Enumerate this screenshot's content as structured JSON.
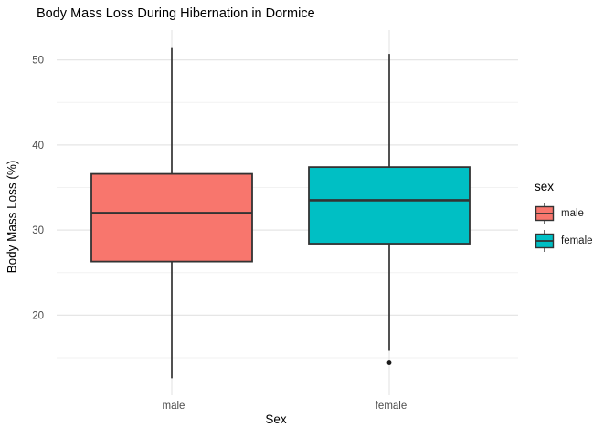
{
  "chart_data": {
    "type": "boxplot",
    "title": "Body Mass Loss During Hibernation in Dormice",
    "xlabel": "Sex",
    "ylabel": "Body Mass Loss (%)",
    "categories": [
      "male",
      "female"
    ],
    "series": [
      {
        "name": "male",
        "color": "#F8766D",
        "min": 12.6,
        "q1": 26.3,
        "median": 32.0,
        "q3": 36.6,
        "max": 51.4,
        "outliers": []
      },
      {
        "name": "female",
        "color": "#00BFC4",
        "min": 15.8,
        "q1": 28.4,
        "median": 33.5,
        "q3": 37.4,
        "max": 50.7,
        "outliers": [
          14.4
        ]
      }
    ],
    "y_ticks_major": [
      20,
      30,
      40,
      50
    ],
    "y_ticks_minor": [
      15,
      25,
      35,
      45
    ],
    "ylim": [
      10.6,
      53.5
    ],
    "grid": true,
    "legend": {
      "title": "sex",
      "position": "right",
      "entries": [
        {
          "label": "male",
          "color": "#F8766D"
        },
        {
          "label": "female",
          "color": "#00BFC4"
        }
      ]
    },
    "colors": {
      "grid_major": "#E6E6E6",
      "grid_minor": "#F2F2F2",
      "box_stroke": "#333333",
      "axis_text": "#4D4D4D",
      "title_text": "#000000",
      "outlier": "#1A1A1A",
      "background": "#FFFFFF"
    }
  }
}
